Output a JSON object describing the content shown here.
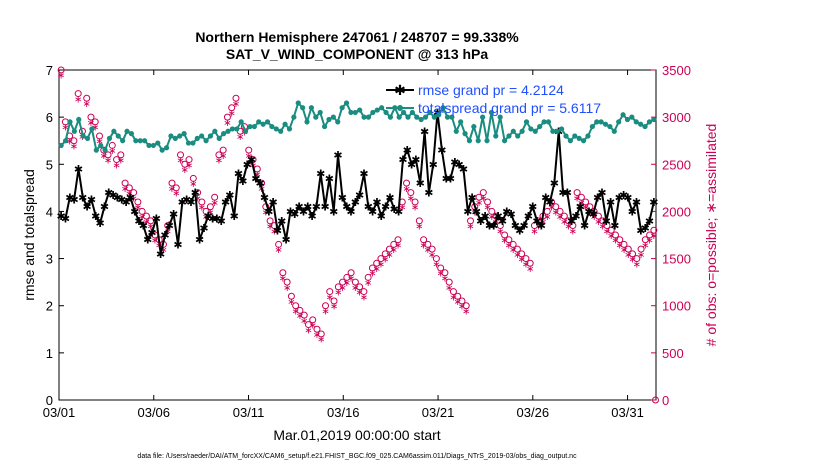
{
  "chart_data": {
    "type": "line",
    "title": "Northern Hemisphere 247061 / 248707 = 99.338%",
    "subtitle": "SAT_V_WIND_COMPONENT @ 313 hPa",
    "xlabel": "Mar.01,2019 00:00:00 start",
    "ylabel": "rmse and totalspread",
    "ylabel_right": "# of obs: o=possible; ∗=assimilated",
    "footer": "data file: /Users/raeder/DAI/ATM_forcXX/CAM6_setup/f.e21.FHIST_BGC.f09_025.CAM6assim.011/Diags_NTrS_2019-03/obs_diag_output.nc",
    "xlim": [
      0,
      31.5
    ],
    "ylim": [
      0,
      7
    ],
    "ylim_right": [
      0,
      3500
    ],
    "x_tick_labels": [
      "03/01",
      "03/06",
      "03/11",
      "03/16",
      "03/21",
      "03/26",
      "03/31"
    ],
    "y_ticks": [
      0,
      1,
      2,
      3,
      4,
      5,
      6,
      7
    ],
    "y_right_ticks": [
      0,
      500,
      1000,
      1500,
      2000,
      2500,
      3000,
      3500
    ],
    "legend": [
      {
        "label": "rmse grand pr = 4.2124",
        "color": "#000000"
      },
      {
        "label": "totalspread grand pr = 5.6117",
        "color": "#1a8c80"
      }
    ],
    "series": [
      {
        "name": "rmse",
        "color": "#000000",
        "axis": "left",
        "values": [
          3.9,
          3.85,
          4.3,
          4.25,
          4.9,
          4.3,
          4.1,
          4.25,
          3.9,
          3.75,
          4.1,
          4.4,
          4.35,
          4.3,
          4.25,
          4.2,
          4.3,
          4.0,
          3.8,
          3.7,
          3.4,
          3.55,
          3.85,
          3.1,
          3.5,
          3.7,
          3.95,
          3.3,
          4.2,
          4.25,
          4.2,
          4.4,
          3.4,
          3.65,
          3.9,
          3.85,
          3.85,
          3.8,
          4.2,
          4.35,
          3.9,
          4.8,
          4.65,
          5.0,
          5.1,
          4.7,
          4.6,
          4.3,
          4.0,
          4.2,
          3.6,
          3.8,
          3.4,
          4.0,
          3.95,
          4.1,
          4.0,
          4.1,
          3.9,
          4.1,
          4.8,
          4.1,
          4.7,
          4.0,
          5.2,
          4.3,
          4.1,
          4.0,
          4.2,
          4.35,
          4.8,
          4.1,
          4.0,
          4.2,
          3.9,
          4.1,
          4.3,
          4.05,
          4.0,
          5.1,
          5.3,
          5.0,
          5.1,
          4.6,
          5.7,
          4.4,
          5.0,
          6.1,
          5.3,
          4.7,
          4.7,
          5.05,
          5.0,
          4.9,
          4.0,
          4.3,
          4.0,
          3.8,
          3.9,
          3.7,
          3.7,
          3.9,
          3.8,
          4.0,
          3.95,
          3.7,
          3.6,
          3.7,
          3.9,
          4.1,
          3.8,
          3.7,
          4.3,
          4.2,
          4.6,
          5.7,
          4.4,
          4.4,
          3.8,
          3.9,
          4.1,
          3.7,
          4.0,
          3.95,
          4.3,
          4.4,
          3.8,
          4.2,
          3.7,
          4.3,
          4.35,
          4.3,
          4.0,
          4.2,
          3.6,
          3.65,
          3.8,
          4.2
        ]
      },
      {
        "name": "totalspread",
        "color": "#1a8c80",
        "axis": "left",
        "values": [
          5.4,
          5.5,
          5.9,
          5.7,
          5.95,
          5.6,
          5.55,
          5.75,
          5.3,
          5.4,
          5.3,
          5.55,
          5.7,
          5.6,
          5.5,
          5.7,
          5.65,
          5.5,
          5.5,
          5.5,
          5.4,
          5.4,
          5.45,
          5.3,
          5.35,
          5.6,
          5.55,
          5.6,
          5.65,
          5.45,
          5.45,
          5.55,
          5.6,
          5.5,
          5.6,
          5.7,
          5.55,
          5.65,
          5.7,
          5.75,
          5.75,
          5.9,
          5.7,
          5.8,
          5.8,
          5.9,
          5.85,
          5.9,
          5.8,
          5.75,
          5.7,
          5.85,
          5.75,
          6.0,
          6.3,
          6.2,
          5.9,
          6.2,
          6.0,
          6.1,
          5.8,
          5.95,
          6.0,
          5.9,
          6.2,
          6.3,
          6.1,
          6.1,
          6.15,
          6.0,
          6.0,
          6.1,
          6.15,
          6.2,
          6.1,
          6.0,
          6.2,
          6.0,
          6.1,
          6.0,
          6.1,
          6.0,
          5.95,
          6.0,
          6.1,
          6.0,
          6.05,
          6.2,
          6.0,
          6.0,
          5.7,
          5.9,
          5.65,
          5.5,
          5.8,
          5.5,
          6.0,
          5.5,
          6.1,
          5.6,
          6.0,
          5.5,
          5.6,
          5.7,
          5.6,
          5.7,
          5.9,
          5.75,
          5.7,
          5.8,
          5.9,
          5.9,
          5.7,
          5.7,
          5.75,
          5.6,
          5.5,
          5.6,
          5.55,
          5.5,
          5.6,
          5.8,
          5.9,
          5.9,
          5.85,
          5.8,
          5.7,
          5.9,
          6.05,
          5.95,
          6.0,
          5.9,
          5.85,
          5.8,
          5.9,
          5.95
        ]
      }
    ],
    "obs_possible": [
      3500,
      2950,
      2800,
      2750,
      3250,
      2850,
      3200,
      3000,
      2950,
      2800,
      2650,
      2600,
      2700,
      2550,
      2600,
      2300,
      2250,
      2200,
      2100,
      2000,
      1950,
      1900,
      1750,
      1700,
      1650,
      1850,
      2300,
      2250,
      2600,
      2500,
      2550,
      2350,
      2200,
      2100,
      2000,
      2050,
      2150,
      2600,
      2650,
      3000,
      3100,
      3200,
      2850,
      2900,
      2650,
      2550,
      2450,
      2300,
      2050,
      1900,
      1850,
      1650,
      1350,
      1250,
      1100,
      1000,
      950,
      900,
      800,
      850,
      750,
      700,
      1000,
      1150,
      1050,
      1200,
      1250,
      1300,
      1350,
      1250,
      1200,
      1150,
      1300,
      1400,
      1450,
      1500,
      1550,
      1600,
      1650,
      1700,
      2100,
      2300,
      2200,
      2100,
      1900,
      1700,
      1650,
      1600,
      1500,
      1400,
      1350,
      1250,
      1150,
      1100,
      1050,
      1000,
      1900,
      2050,
      2150,
      2200,
      2100,
      2000,
      1950,
      1850,
      1750,
      1700,
      1650,
      1600,
      1550,
      1500,
      1450,
      1850,
      1900,
      1950,
      2000,
      2100,
      2050,
      2000,
      1950,
      1900,
      1850,
      2200,
      2150,
      2100,
      2050,
      2000,
      1950,
      1900,
      1850,
      1800,
      1750,
      1700,
      1650,
      1600,
      1550,
      1500,
      1600,
      1700,
      1750,
      1800
    ],
    "obs_assimilated": [
      3450,
      2900,
      2750,
      2700,
      3200,
      2800,
      3150,
      2950,
      2900,
      2750,
      2600,
      2550,
      2650,
      2500,
      2550,
      2250,
      2200,
      2150,
      2050,
      1950,
      1900,
      1850,
      1700,
      1650,
      1600,
      1800,
      2250,
      2200,
      2550,
      2450,
      2500,
      2300,
      2150,
      2050,
      1950,
      2000,
      2100,
      2550,
      2600,
      2950,
      3050,
      3150,
      2800,
      2850,
      2600,
      2500,
      2400,
      2250,
      2000,
      1850,
      1800,
      1600,
      1300,
      1200,
      1050,
      950,
      900,
      850,
      750,
      800,
      700,
      650,
      950,
      1100,
      1000,
      1150,
      1200,
      1250,
      1300,
      1200,
      1150,
      1100,
      1250,
      1350,
      1400,
      1450,
      1500,
      1550,
      1600,
      1650,
      2050,
      2250,
      2150,
      2050,
      1850,
      1650,
      1600,
      1550,
      1450,
      1350,
      1300,
      1200,
      1100,
      1050,
      1000,
      950,
      1850,
      2000,
      2100,
      2150,
      2050,
      1950,
      1900,
      1800,
      1700,
      1650,
      1600,
      1550,
      1500,
      1450,
      1400,
      1800,
      1850,
      1900,
      1950,
      2050,
      2000,
      1950,
      1900,
      1850,
      1800,
      2150,
      2100,
      2050,
      2000,
      1950,
      1900,
      1850,
      1800,
      1750,
      1700,
      1650,
      1600,
      1550,
      1500,
      1450,
      1550,
      1650,
      1700,
      1750
    ]
  }
}
